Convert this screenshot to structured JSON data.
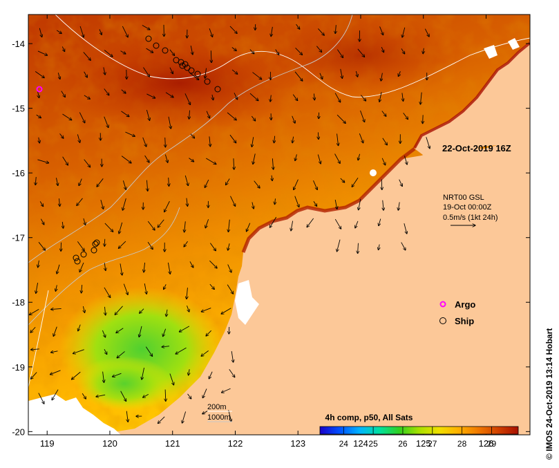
{
  "map": {
    "timestamp": "22-Oct-2019 16Z",
    "current_note": {
      "line1": "NRT00 GSL",
      "line2": "19-Oct 00:00Z",
      "line3": "0.5m/s (1kt 24h)"
    },
    "legend": {
      "argo_label": "Argo",
      "ship_label": "Ship",
      "argo_color": "#ff00ff",
      "ship_color": "#000000"
    },
    "depth_contours": {
      "line1": "200m",
      "line2": "1000m"
    },
    "colorbar": {
      "title": "4h comp, p50, All Sats",
      "ticks": [
        "24",
        "25",
        "26",
        "27",
        "28",
        "29"
      ],
      "range": [
        23.2,
        29.9
      ],
      "colors": [
        "#1a00c8",
        "#0050ff",
        "#00b4ff",
        "#00e0a0",
        "#30d020",
        "#a8e000",
        "#f0e000",
        "#ffb000",
        "#f07800",
        "#d04000",
        "#a81000"
      ]
    },
    "credit": "© IMOS 24-Oct-2019 13:14 Hobart",
    "lon_labels": [
      "119",
      "120",
      "121",
      "122",
      "123",
      "124",
      "125",
      "126"
    ],
    "lat_labels": [
      "-14",
      "-15",
      "-16",
      "-17",
      "-18",
      "-19",
      "-20"
    ],
    "lon_range": [
      118.7,
      126.7
    ],
    "lat_range": [
      -20.05,
      -13.55
    ],
    "land_color": "#fcc898",
    "cloud_color": "#ffffff"
  }
}
